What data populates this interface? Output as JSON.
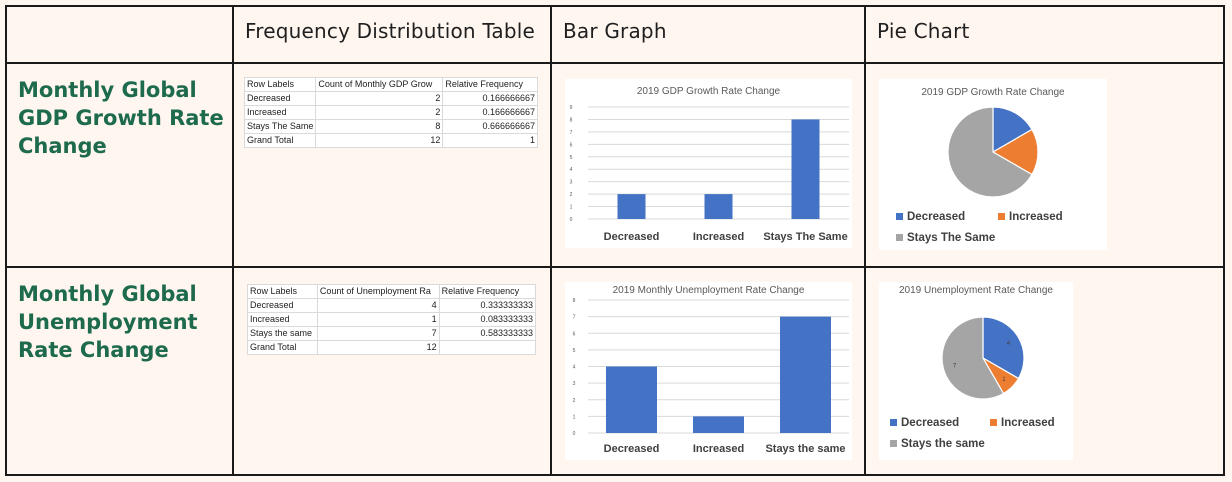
{
  "headers": {
    "corner": "",
    "freq_table": "Frequency Distribution Table",
    "bar_graph": "Bar Graph",
    "pie_chart": "Pie Chart"
  },
  "rows": [
    {
      "label": "Monthly Global GDP Growth Rate Change",
      "label_lines": [
        "Monthly Global",
        "GDP Growth Rate",
        "Change"
      ],
      "table": {
        "columns": [
          "Row Labels",
          "Count of Monthly GDP Grow",
          "Relative Frequency"
        ],
        "rows": [
          [
            "Decreased",
            "2",
            "0.166666667"
          ],
          [
            "Increased",
            "2",
            "0.166666667"
          ],
          [
            "Stays The Same",
            "8",
            "0.666666667"
          ],
          [
            "Grand Total",
            "12",
            "1"
          ]
        ]
      }
    },
    {
      "label": "Monthly Global Unemployment Rate Change",
      "label_lines": [
        "Monthly Global",
        "Unemployment",
        "Rate Change"
      ],
      "table": {
        "columns": [
          "Row Labels",
          "Count of Unemployment Ra",
          "Relative Frequency"
        ],
        "rows": [
          [
            "Decreased",
            "4",
            "0.333333333"
          ],
          [
            "Increased",
            "1",
            "0.083333333"
          ],
          [
            "Stays the same",
            "7",
            "0.583333333"
          ],
          [
            "Grand Total",
            "12",
            ""
          ]
        ]
      }
    }
  ],
  "colors": {
    "blue": "#4472c4",
    "orange": "#ed7d31",
    "gray": "#a5a5a5",
    "label_green": "#1d6a4c"
  },
  "chart_data": [
    {
      "type": "bar",
      "title": "2019 GDP Growth Rate Change",
      "categories": [
        "Decreased",
        "Increased",
        "Stays The Same"
      ],
      "values": [
        2,
        2,
        8
      ],
      "ylim": [
        0,
        9
      ],
      "yticks": [
        0,
        1,
        2,
        3,
        4,
        5,
        6,
        7,
        8,
        9
      ],
      "grid": true
    },
    {
      "type": "pie",
      "title": "2019 GDP Growth Rate Change",
      "categories": [
        "Decreased",
        "Increased",
        "Stays The Same"
      ],
      "values": [
        2,
        2,
        8
      ],
      "legend": "bottom"
    },
    {
      "type": "bar",
      "title": "2019 Monthly Unemployment Rate Change",
      "categories": [
        "Decreased",
        "Increased",
        "Stays the same"
      ],
      "values": [
        4,
        1,
        7
      ],
      "ylim": [
        0,
        8
      ],
      "yticks": [
        0,
        1,
        2,
        3,
        4,
        5,
        6,
        7,
        8
      ],
      "grid": true
    },
    {
      "type": "pie",
      "title": "2019 Unemployment Rate Change",
      "categories": [
        "Decreased",
        "Increased",
        "Stays the same"
      ],
      "values": [
        4,
        1,
        7
      ],
      "data_labels": [
        "4",
        "1",
        "7"
      ],
      "legend": "bottom"
    }
  ]
}
